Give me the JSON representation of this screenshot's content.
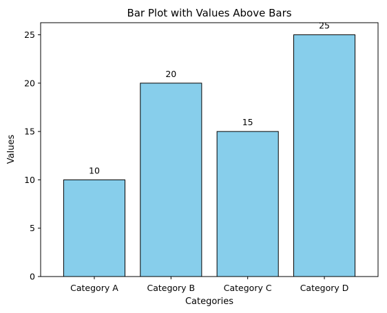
{
  "chart_data": {
    "type": "bar",
    "title": "Bar Plot with Values Above Bars",
    "xlabel": "Categories",
    "ylabel": "Values",
    "categories": [
      "Category A",
      "Category B",
      "Category C",
      "Category D"
    ],
    "values": [
      10,
      20,
      15,
      25
    ],
    "value_labels": [
      "10",
      "20",
      "15",
      "25"
    ],
    "ylim": [
      0,
      26.25
    ],
    "yticks": [
      0,
      5,
      10,
      15,
      20,
      25
    ],
    "ytick_labels": [
      "0",
      "5",
      "10",
      "15",
      "20",
      "25"
    ],
    "grid": false,
    "bar_color": "#87CEEB",
    "edge_color": "#000000"
  }
}
